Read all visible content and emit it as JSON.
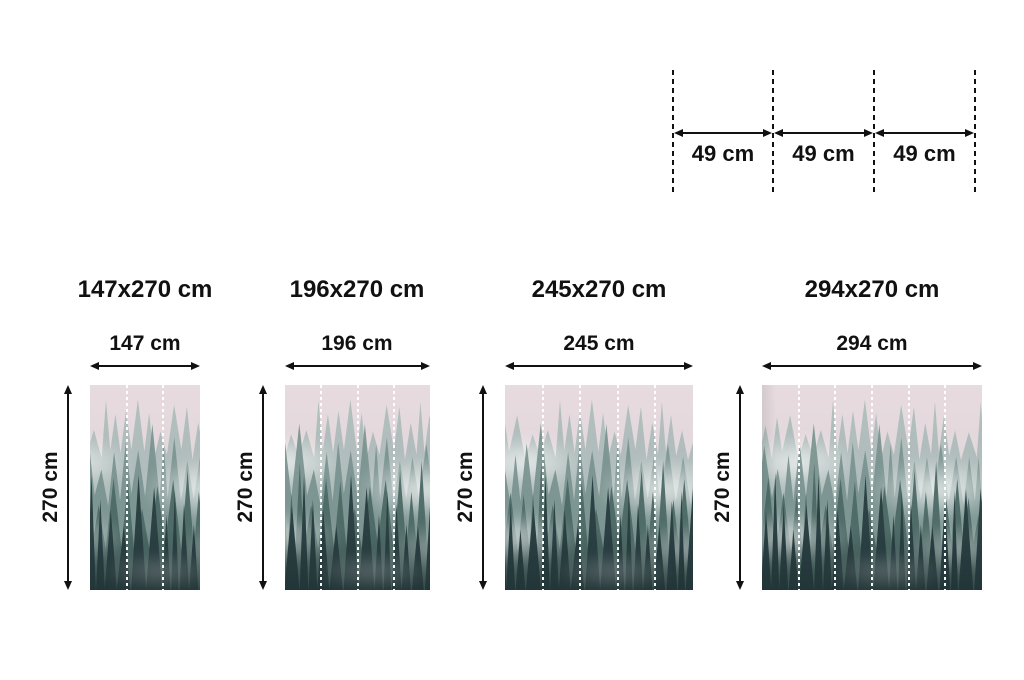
{
  "panel_diagram": {
    "labels": [
      "49 cm",
      "49 cm",
      "49 cm"
    ]
  },
  "sizes": [
    {
      "title": "147x270 cm",
      "width_label": "147 cm",
      "height_label": "270 cm",
      "panels": 3
    },
    {
      "title": "196x270 cm",
      "width_label": "196 cm",
      "height_label": "270 cm",
      "panels": 4
    },
    {
      "title": "245x270 cm",
      "width_label": "245 cm",
      "height_label": "270 cm",
      "panels": 5
    },
    {
      "title": "294x270 cm",
      "width_label": "294 cm",
      "height_label": "270 cm",
      "panels": 6
    }
  ],
  "image_description": "misty pine forest wallpaper preview",
  "colors": {
    "text": "#111111",
    "line": "#111111",
    "panel_divider": "#ffffff",
    "sky": "#e4d8dc",
    "tree_far": "#a7b8b6",
    "tree_mid": "#7a938f",
    "tree_deep": "#4d6965",
    "tree_front": "#2b4144"
  }
}
